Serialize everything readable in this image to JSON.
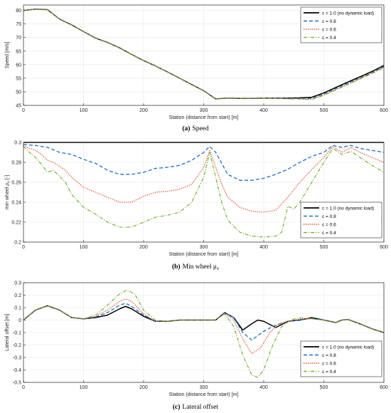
{
  "figure": {
    "captions": [
      {
        "label": "(a)",
        "text": "Speed"
      },
      {
        "label": "(b)",
        "text": "Min wheel  μ",
        "sub": "x"
      },
      {
        "label": "(c)",
        "text": "Lateral offset"
      }
    ]
  },
  "colors": {
    "c10": "#000000",
    "c08": "#1f6fc9",
    "c06": "#e8421c",
    "c04": "#6aab1f"
  },
  "chart_data": [
    {
      "type": "line",
      "xlabel": "Station (distance from start) [m]",
      "ylabel": "Speed [m/s]",
      "xlim": [
        0,
        600
      ],
      "ylim": [
        45,
        82
      ],
      "xticks": [
        0,
        100,
        200,
        300,
        400,
        500,
        600
      ],
      "yticks": [
        45,
        50,
        55,
        60,
        65,
        70,
        75,
        80
      ],
      "grid": true,
      "legend": "top-right",
      "series": [
        {
          "name": "c = 1.0 (no dynamic load)",
          "color": "#000000",
          "dash": "solid",
          "x": [
            0,
            20,
            40,
            60,
            80,
            100,
            120,
            140,
            160,
            180,
            200,
            220,
            240,
            260,
            280,
            300,
            320,
            340,
            360,
            380,
            400,
            420,
            440,
            460,
            480,
            500,
            520,
            540,
            560,
            580,
            600
          ],
          "y": [
            80,
            80.5,
            80.3,
            76.8,
            74.7,
            72.2,
            69.8,
            68.2,
            66.2,
            63.8,
            61.5,
            59.5,
            57.3,
            55.0,
            52.7,
            50.4,
            47.4,
            47.7,
            47.6,
            47.6,
            47.7,
            47.7,
            47.7,
            47.8,
            48.0,
            49.6,
            51.6,
            53.6,
            55.5,
            57.5,
            59.7
          ]
        },
        {
          "name": "c = 0.8",
          "color": "#1f6fc9",
          "dash": "dashed",
          "x": [
            0,
            20,
            40,
            60,
            80,
            100,
            120,
            140,
            160,
            180,
            200,
            220,
            240,
            260,
            280,
            300,
            320,
            340,
            360,
            380,
            400,
            420,
            440,
            460,
            480,
            500,
            520,
            540,
            560,
            580,
            600
          ],
          "y": [
            80,
            80.5,
            80.3,
            76.8,
            74.7,
            72.2,
            69.8,
            68.2,
            66.2,
            63.8,
            61.5,
            59.5,
            57.3,
            55.0,
            52.7,
            50.4,
            47.4,
            47.7,
            47.6,
            47.6,
            47.7,
            47.7,
            47.6,
            47.6,
            47.6,
            49.2,
            51.2,
            53.2,
            55.1,
            57.1,
            59.3
          ]
        },
        {
          "name": "c = 0.6",
          "color": "#e8421c",
          "dash": "dotted",
          "x": [
            0,
            20,
            40,
            60,
            80,
            100,
            120,
            140,
            160,
            180,
            200,
            220,
            240,
            260,
            280,
            300,
            320,
            340,
            360,
            380,
            400,
            420,
            440,
            460,
            480,
            500,
            520,
            540,
            560,
            580,
            600
          ],
          "y": [
            80,
            80.5,
            80.3,
            76.8,
            74.7,
            72.2,
            69.8,
            68.2,
            66.2,
            63.8,
            61.5,
            59.5,
            57.3,
            55.0,
            52.7,
            50.4,
            47.4,
            47.7,
            47.6,
            47.6,
            47.6,
            47.6,
            47.5,
            47.4,
            47.3,
            48.9,
            50.9,
            52.9,
            54.9,
            56.9,
            59.1
          ]
        },
        {
          "name": "c = 0.4",
          "color": "#6aab1f",
          "dash": "dashdot",
          "x": [
            0,
            20,
            40,
            60,
            80,
            100,
            120,
            140,
            160,
            180,
            200,
            220,
            240,
            260,
            280,
            300,
            320,
            340,
            360,
            380,
            400,
            420,
            440,
            460,
            480,
            500,
            520,
            540,
            560,
            580,
            600
          ],
          "y": [
            80,
            80.5,
            80.3,
            76.8,
            74.7,
            72.2,
            69.8,
            68.2,
            66.2,
            63.8,
            61.5,
            59.5,
            57.3,
            55.0,
            52.7,
            50.4,
            47.4,
            47.7,
            47.6,
            47.6,
            47.6,
            47.5,
            47.4,
            47.3,
            47.2,
            48.7,
            50.7,
            52.7,
            54.7,
            56.7,
            58.9
          ]
        }
      ]
    },
    {
      "type": "line",
      "xlabel": "Station (distance from start) [m]",
      "ylabel": "min wheel μx [-]",
      "ylabel_main": "min wheel ",
      "ylabel_mu": "μ",
      "ylabel_sub": "x",
      "ylabel_unit": " [-]",
      "xlim": [
        0,
        600
      ],
      "ylim": [
        0.2,
        0.3
      ],
      "xticks": [
        0,
        100,
        200,
        300,
        400,
        500,
        600
      ],
      "yticks": [
        0.2,
        0.22,
        0.24,
        0.26,
        0.28,
        0.3
      ],
      "grid": true,
      "legend": "bottom-right",
      "series": [
        {
          "name": "c = 1.0 (no dynamic load)",
          "color": "#000000",
          "dash": "solid",
          "x": [
            0,
            600
          ],
          "y": [
            0.3,
            0.3
          ]
        },
        {
          "name": "c = 0.8",
          "color": "#1f6fc9",
          "dash": "dashed",
          "x": [
            0,
            20,
            40,
            60,
            80,
            100,
            120,
            140,
            160,
            180,
            200,
            220,
            240,
            260,
            280,
            300,
            310,
            320,
            340,
            360,
            380,
            400,
            420,
            440,
            460,
            480,
            500,
            515,
            530,
            545,
            560,
            580,
            600
          ],
          "y": [
            0.298,
            0.297,
            0.295,
            0.29,
            0.288,
            0.283,
            0.279,
            0.272,
            0.268,
            0.268,
            0.27,
            0.274,
            0.275,
            0.277,
            0.282,
            0.29,
            0.296,
            0.29,
            0.268,
            0.262,
            0.262,
            0.264,
            0.268,
            0.273,
            0.28,
            0.286,
            0.29,
            0.297,
            0.295,
            0.297,
            0.294,
            0.292,
            0.29
          ]
        },
        {
          "name": "c = 0.6",
          "color": "#e8421c",
          "dash": "dotted",
          "x": [
            0,
            10,
            20,
            30,
            40,
            50,
            60,
            70,
            80,
            100,
            120,
            140,
            160,
            180,
            200,
            220,
            240,
            260,
            280,
            300,
            310,
            320,
            330,
            340,
            360,
            380,
            400,
            420,
            440,
            460,
            480,
            500,
            515,
            530,
            545,
            560,
            580,
            600
          ],
          "y": [
            0.297,
            0.294,
            0.292,
            0.288,
            0.282,
            0.28,
            0.276,
            0.272,
            0.265,
            0.255,
            0.25,
            0.245,
            0.24,
            0.24,
            0.246,
            0.25,
            0.251,
            0.253,
            0.258,
            0.275,
            0.292,
            0.275,
            0.258,
            0.245,
            0.235,
            0.231,
            0.23,
            0.232,
            0.245,
            0.26,
            0.273,
            0.285,
            0.296,
            0.29,
            0.295,
            0.29,
            0.285,
            0.28
          ]
        },
        {
          "name": "c = 0.4",
          "color": "#6aab1f",
          "dash": "dashdot",
          "x": [
            0,
            10,
            20,
            30,
            40,
            50,
            60,
            70,
            80,
            100,
            120,
            140,
            160,
            180,
            200,
            220,
            240,
            260,
            280,
            300,
            310,
            320,
            330,
            340,
            360,
            380,
            400,
            420,
            430,
            440,
            450,
            460,
            480,
            500,
            515,
            530,
            545,
            560,
            580,
            600
          ],
          "y": [
            0.296,
            0.29,
            0.285,
            0.278,
            0.27,
            0.272,
            0.266,
            0.26,
            0.248,
            0.235,
            0.228,
            0.22,
            0.215,
            0.215,
            0.22,
            0.225,
            0.227,
            0.23,
            0.24,
            0.265,
            0.29,
            0.265,
            0.24,
            0.222,
            0.21,
            0.206,
            0.205,
            0.206,
            0.21,
            0.236,
            0.233,
            0.24,
            0.26,
            0.28,
            0.294,
            0.288,
            0.291,
            0.285,
            0.277,
            0.27
          ]
        }
      ]
    },
    {
      "type": "line",
      "xlabel": "Station (distance from start) [m]",
      "ylabel": "Lateral offset [m]",
      "xlim": [
        0,
        600
      ],
      "ylim": [
        -0.5,
        0.3
      ],
      "xticks": [
        0,
        100,
        200,
        300,
        400,
        500,
        600
      ],
      "yticks": [
        -0.5,
        -0.4,
        -0.3,
        -0.2,
        -0.1,
        0,
        0.1,
        0.2,
        0.3
      ],
      "grid": true,
      "legend": "bottom-right",
      "series": [
        {
          "name": "c = 1.0 (no dynamic load)",
          "color": "#000000",
          "dash": "solid",
          "x": [
            0,
            20,
            40,
            60,
            80,
            100,
            120,
            140,
            160,
            170,
            180,
            200,
            220,
            240,
            260,
            280,
            300,
            320,
            335,
            350,
            365,
            380,
            390,
            400,
            420,
            440,
            460,
            480,
            500,
            520,
            530,
            540,
            560,
            580,
            600
          ],
          "y": [
            0,
            0.08,
            0.115,
            0.08,
            0.02,
            0.01,
            0.02,
            0.04,
            0.09,
            0.11,
            0.09,
            0.03,
            -0.01,
            -0.01,
            0,
            0,
            0,
            0,
            0.06,
            0.02,
            -0.08,
            -0.03,
            0,
            -0.01,
            -0.06,
            -0.01,
            0,
            0.02,
            0,
            -0.02,
            0,
            0.005,
            -0.03,
            -0.07,
            -0.1
          ]
        },
        {
          "name": "c = 0.8",
          "color": "#1f6fc9",
          "dash": "dashed",
          "x": [
            0,
            20,
            40,
            60,
            80,
            100,
            120,
            140,
            160,
            170,
            180,
            200,
            220,
            240,
            260,
            280,
            300,
            320,
            335,
            350,
            365,
            380,
            400,
            420,
            440,
            460,
            480,
            500,
            520,
            530,
            540,
            560,
            580,
            600
          ],
          "y": [
            0,
            0.08,
            0.115,
            0.08,
            0.02,
            0.01,
            0.025,
            0.06,
            0.12,
            0.135,
            0.11,
            0.04,
            -0.01,
            -0.01,
            0,
            0,
            0,
            0,
            0.06,
            0.02,
            -0.1,
            -0.16,
            -0.09,
            -0.04,
            -0.01,
            0,
            0.015,
            0,
            -0.02,
            0,
            0.005,
            -0.03,
            -0.07,
            -0.1
          ]
        },
        {
          "name": "c = 0.6",
          "color": "#e8421c",
          "dash": "dotted",
          "x": [
            0,
            20,
            40,
            60,
            80,
            100,
            120,
            140,
            160,
            170,
            180,
            200,
            220,
            240,
            260,
            280,
            300,
            320,
            335,
            350,
            365,
            380,
            395,
            410,
            425,
            440,
            460,
            480,
            500,
            520,
            530,
            540,
            560,
            580,
            600
          ],
          "y": [
            0,
            0.08,
            0.115,
            0.08,
            0.02,
            0.01,
            0.03,
            0.08,
            0.15,
            0.17,
            0.15,
            0.05,
            -0.01,
            -0.01,
            0,
            0,
            0,
            0,
            0.055,
            0.0,
            -0.15,
            -0.27,
            -0.22,
            -0.1,
            -0.03,
            -0.01,
            0.01,
            0.01,
            0,
            -0.02,
            0,
            0.005,
            -0.03,
            -0.07,
            -0.1
          ]
        },
        {
          "name": "c = 0.4",
          "color": "#6aab1f",
          "dash": "dashdot",
          "x": [
            0,
            20,
            40,
            60,
            80,
            100,
            120,
            140,
            160,
            172,
            185,
            200,
            220,
            240,
            260,
            280,
            300,
            320,
            335,
            350,
            365,
            380,
            390,
            400,
            415,
            430,
            445,
            460,
            480,
            500,
            520,
            530,
            540,
            560,
            580,
            600
          ],
          "y": [
            0,
            0.08,
            0.115,
            0.08,
            0.02,
            0.01,
            0.04,
            0.12,
            0.21,
            0.24,
            0.21,
            0.08,
            0,
            -0.01,
            0,
            0,
            0,
            0,
            0.05,
            -0.05,
            -0.28,
            -0.44,
            -0.46,
            -0.4,
            -0.2,
            -0.05,
            0,
            0.02,
            0.01,
            0,
            -0.02,
            0,
            0.005,
            -0.03,
            -0.07,
            -0.1
          ]
        }
      ]
    }
  ]
}
